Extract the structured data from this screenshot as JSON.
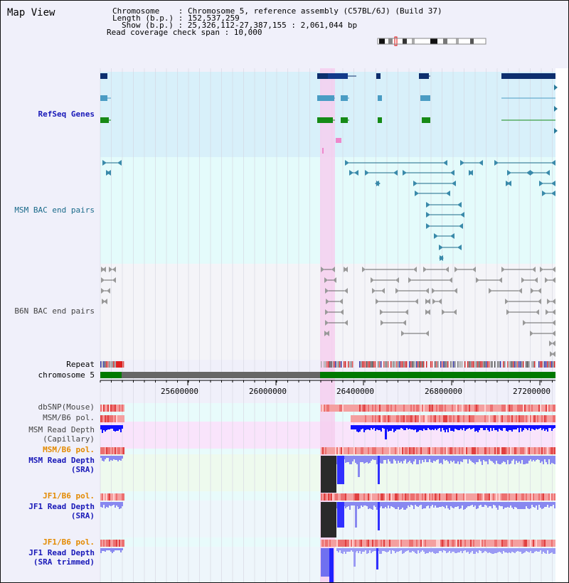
{
  "app": {
    "title": "Map View"
  },
  "info": {
    "chromosome": "Chromosome    : Chromosome 5, reference assembly (C57BL/6J) (Build 37)",
    "length": "Length (b.p.) : 152,537,259",
    "show": "Show (b.p.) : 25,326,112-27,387,155 : 2,061,044 bp",
    "coverage": "Read coverage check span : 10,000"
  },
  "tracks": {
    "refseq": "RefSeq Genes",
    "msm_bac": "MSM BAC end pairs",
    "b6n_bac": "B6N BAC end pairs",
    "repeat": "Repeat",
    "chromosome": "chromosome 5",
    "dbsnp": "dbSNP(Mouse)",
    "msm_b6_pol_1": "MSM/B6 pol.",
    "msm_depth_cap_1": "MSM Read Depth",
    "msm_depth_cap_2": "(Capillary)",
    "msm_b6_pol_2": "MSM/B6 pol.",
    "msm_depth_sra_1": "MSM Read Depth",
    "msm_depth_sra_2": "(SRA)",
    "jf1_b6_pol_1": "JF1/B6 pol.",
    "jf1_depth_sra_1": "JF1 Read Depth",
    "jf1_depth_sra_2": "(SRA)",
    "jf1_b6_pol_2": "JF1/B6 pol.",
    "jf1_depth_trim_1": "JF1 Read Depth",
    "jf1_depth_trim_2": "(SRA trimmed)"
  },
  "axis": {
    "ticks": [
      "25600000",
      "26000000",
      "26400000",
      "26800000",
      "27200000"
    ]
  },
  "colors": {
    "highlight": "#f6cfee",
    "refseq_bg": "#d8f0fa",
    "msm_bac_bg": "#e4fbfb",
    "b6n_bac_bg": "#f4f4f8",
    "chrom_green": "#007a00",
    "chrom_gray": "#666666",
    "depth_blue": "#1010ff"
  }
}
